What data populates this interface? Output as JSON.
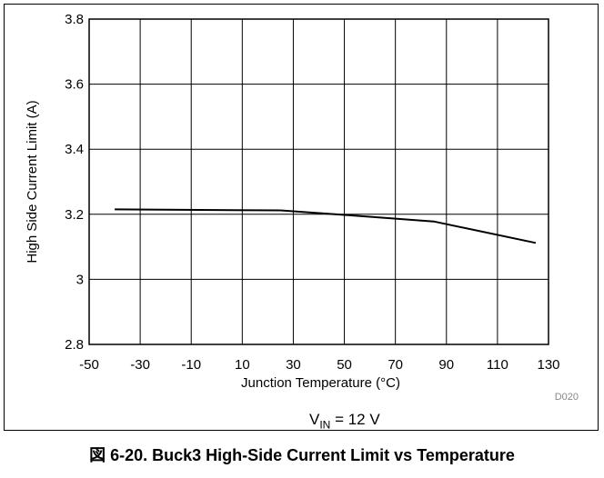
{
  "chart_data": {
    "type": "line",
    "xlabel": "Junction Temperature (°C)",
    "ylabel": "High Side Current Limit (A)",
    "xlim": [
      -50,
      130
    ],
    "ylim": [
      2.8,
      3.8
    ],
    "x_ticks": [
      "-50",
      "-30",
      "-10",
      "10",
      "30",
      "50",
      "70",
      "90",
      "110",
      "130"
    ],
    "y_ticks": [
      "2.8",
      "3",
      "3.2",
      "3.4",
      "3.6",
      "3.8"
    ],
    "grid": true,
    "series": [
      {
        "x": [
          -40,
          0,
          25,
          50,
          85,
          125
        ],
        "values": [
          3.215,
          3.213,
          3.212,
          3.198,
          3.178,
          3.112
        ]
      }
    ],
    "figure_code": "D020",
    "condition": {
      "main": "V",
      "sub": "IN",
      "rest": " = 12 V"
    },
    "caption": "図 6-20. Buck3 High-Side Current Limit vs Temperature"
  }
}
